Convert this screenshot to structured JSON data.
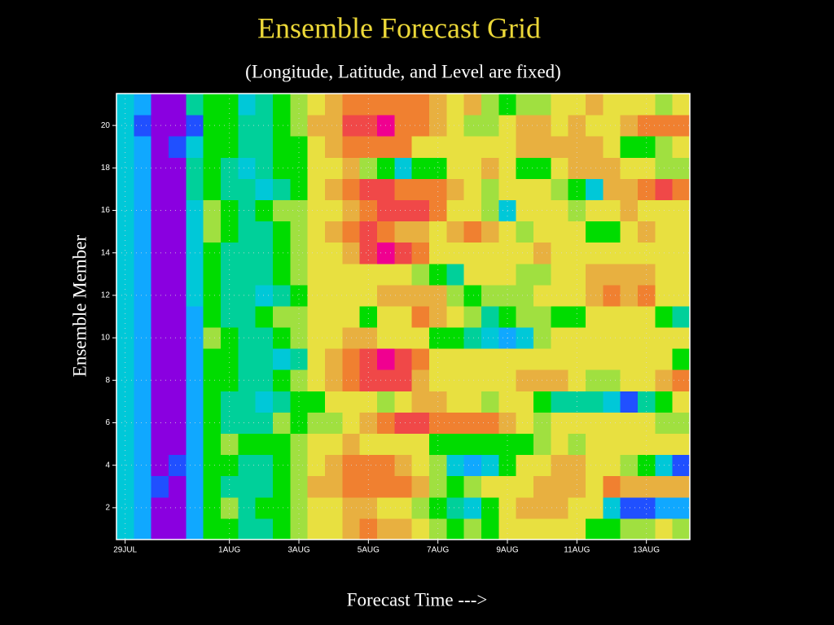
{
  "chart_data": {
    "type": "heatmap",
    "title": "Ensemble Forecast Grid",
    "subtitle": "(Longitude, Latitude, and Level are fixed)",
    "x_label": "Forecast Time --->",
    "y_label": "Ensemble Member",
    "categories": [
      "29JUL",
      null,
      null,
      null,
      null,
      null,
      "1AUG",
      null,
      null,
      null,
      "3AUG",
      null,
      null,
      null,
      "5AUG",
      null,
      null,
      null,
      "7AUG",
      null,
      null,
      null,
      "9AUG",
      null,
      null,
      null,
      "11AUG",
      null,
      null,
      null,
      "13AUG",
      null,
      null
    ],
    "y": [
      1,
      2,
      3,
      4,
      5,
      6,
      7,
      8,
      9,
      10,
      11,
      12,
      13,
      14,
      15,
      16,
      17,
      18,
      19,
      20,
      21
    ],
    "ylim": [
      0.5,
      21.5
    ],
    "yticks": [
      2,
      4,
      6,
      8,
      10,
      12,
      14,
      16,
      18,
      20
    ],
    "grid": true,
    "colors": [
      "#8a00e0",
      "#2050ff",
      "#10a8ff",
      "#00c8d8",
      "#00d09a",
      "#00dc00",
      "#a0e040",
      "#e8e040",
      "#e8b040",
      "#f08030",
      "#f04848",
      "#f00090"
    ],
    "z": [
      [
        3,
        2,
        0,
        0,
        2,
        5,
        5,
        4,
        4,
        5,
        6,
        7,
        7,
        8,
        9,
        8,
        8,
        7,
        6,
        5,
        6,
        5,
        7,
        7,
        7,
        7,
        7,
        5,
        5,
        6,
        6,
        7,
        6
      ],
      [
        3,
        2,
        0,
        0,
        2,
        5,
        6,
        4,
        5,
        5,
        6,
        7,
        7,
        8,
        8,
        7,
        7,
        6,
        5,
        4,
        3,
        5,
        7,
        8,
        8,
        8,
        7,
        7,
        3,
        1,
        1,
        2,
        2
      ],
      [
        3,
        2,
        1,
        0,
        2,
        5,
        4,
        4,
        4,
        5,
        6,
        8,
        8,
        9,
        9,
        9,
        9,
        8,
        6,
        5,
        6,
        7,
        7,
        7,
        8,
        8,
        8,
        7,
        9,
        8,
        8,
        8,
        8
      ],
      [
        3,
        2,
        0,
        1,
        2,
        5,
        5,
        4,
        4,
        5,
        6,
        7,
        8,
        9,
        9,
        9,
        8,
        7,
        6,
        3,
        2,
        3,
        5,
        7,
        7,
        8,
        8,
        7,
        7,
        6,
        5,
        3,
        1
      ],
      [
        3,
        2,
        0,
        0,
        2,
        5,
        6,
        5,
        5,
        5,
        6,
        7,
        7,
        8,
        7,
        7,
        7,
        7,
        5,
        5,
        5,
        5,
        5,
        5,
        6,
        7,
        6,
        7,
        7,
        7,
        7,
        7,
        7
      ],
      [
        3,
        2,
        0,
        0,
        2,
        5,
        4,
        4,
        4,
        6,
        5,
        6,
        6,
        7,
        8,
        9,
        10,
        10,
        9,
        9,
        9,
        9,
        8,
        7,
        6,
        7,
        7,
        7,
        7,
        7,
        7,
        6,
        6
      ],
      [
        3,
        2,
        0,
        0,
        2,
        5,
        4,
        4,
        3,
        4,
        5,
        5,
        7,
        7,
        7,
        6,
        7,
        8,
        8,
        7,
        7,
        6,
        7,
        7,
        5,
        4,
        4,
        4,
        3,
        1,
        4,
        5,
        7
      ],
      [
        3,
        2,
        0,
        0,
        2,
        5,
        5,
        4,
        4,
        5,
        6,
        7,
        8,
        9,
        10,
        10,
        10,
        8,
        7,
        7,
        7,
        7,
        7,
        8,
        8,
        8,
        7,
        6,
        6,
        7,
        7,
        8,
        9
      ],
      [
        3,
        2,
        0,
        0,
        2,
        5,
        5,
        4,
        4,
        3,
        4,
        7,
        8,
        9,
        10,
        11,
        10,
        9,
        7,
        7,
        7,
        7,
        7,
        7,
        7,
        7,
        7,
        7,
        7,
        7,
        7,
        7,
        5
      ],
      [
        3,
        2,
        0,
        0,
        2,
        6,
        5,
        4,
        4,
        5,
        6,
        7,
        7,
        8,
        8,
        7,
        7,
        7,
        5,
        5,
        4,
        3,
        2,
        3,
        6,
        7,
        7,
        7,
        7,
        7,
        7,
        7,
        7
      ],
      [
        3,
        2,
        0,
        0,
        2,
        5,
        4,
        4,
        5,
        6,
        6,
        7,
        7,
        7,
        5,
        7,
        7,
        9,
        8,
        7,
        6,
        4,
        5,
        6,
        6,
        5,
        5,
        7,
        7,
        7,
        7,
        5,
        4
      ],
      [
        3,
        2,
        0,
        0,
        3,
        5,
        4,
        4,
        3,
        4,
        5,
        7,
        7,
        7,
        7,
        8,
        8,
        8,
        8,
        6,
        5,
        6,
        6,
        6,
        7,
        7,
        7,
        8,
        9,
        8,
        9,
        7,
        7
      ],
      [
        3,
        2,
        0,
        0,
        3,
        5,
        4,
        4,
        4,
        5,
        6,
        7,
        7,
        7,
        7,
        7,
        7,
        6,
        5,
        4,
        7,
        7,
        7,
        6,
        6,
        7,
        7,
        8,
        8,
        8,
        8,
        7,
        7
      ],
      [
        3,
        2,
        0,
        0,
        3,
        5,
        4,
        4,
        4,
        5,
        6,
        7,
        7,
        8,
        10,
        11,
        10,
        9,
        7,
        7,
        7,
        7,
        7,
        7,
        8,
        7,
        7,
        7,
        7,
        7,
        7,
        7,
        7
      ],
      [
        3,
        2,
        0,
        0,
        3,
        6,
        5,
        4,
        4,
        5,
        6,
        7,
        8,
        9,
        10,
        9,
        8,
        8,
        7,
        8,
        9,
        8,
        7,
        6,
        7,
        7,
        7,
        5,
        5,
        7,
        8,
        7,
        7
      ],
      [
        3,
        2,
        0,
        0,
        3,
        6,
        5,
        4,
        5,
        6,
        6,
        7,
        7,
        8,
        9,
        10,
        10,
        10,
        9,
        7,
        7,
        6,
        3,
        7,
        7,
        7,
        6,
        7,
        7,
        8,
        7,
        7,
        7
      ],
      [
        3,
        2,
        0,
        0,
        4,
        5,
        4,
        4,
        3,
        4,
        5,
        7,
        8,
        9,
        10,
        10,
        9,
        9,
        9,
        8,
        7,
        6,
        7,
        7,
        7,
        6,
        5,
        3,
        8,
        8,
        9,
        10,
        9
      ],
      [
        3,
        2,
        0,
        0,
        4,
        5,
        4,
        3,
        4,
        5,
        5,
        7,
        7,
        8,
        6,
        5,
        3,
        5,
        5,
        7,
        7,
        8,
        7,
        5,
        5,
        7,
        8,
        8,
        8,
        7,
        7,
        6,
        6
      ],
      [
        3,
        2,
        0,
        1,
        3,
        5,
        5,
        4,
        4,
        5,
        5,
        7,
        8,
        9,
        9,
        9,
        9,
        7,
        7,
        7,
        7,
        7,
        7,
        8,
        8,
        8,
        8,
        8,
        7,
        5,
        5,
        6,
        7
      ],
      [
        3,
        1,
        0,
        0,
        1,
        5,
        5,
        4,
        4,
        5,
        6,
        8,
        8,
        10,
        10,
        11,
        9,
        9,
        8,
        7,
        6,
        6,
        7,
        8,
        8,
        7,
        8,
        7,
        7,
        8,
        9,
        9,
        9
      ],
      [
        3,
        2,
        0,
        0,
        4,
        5,
        5,
        3,
        4,
        5,
        6,
        7,
        8,
        9,
        9,
        9,
        9,
        9,
        8,
        7,
        8,
        6,
        5,
        6,
        6,
        7,
        7,
        8,
        7,
        7,
        7,
        6,
        7
      ]
    ]
  }
}
